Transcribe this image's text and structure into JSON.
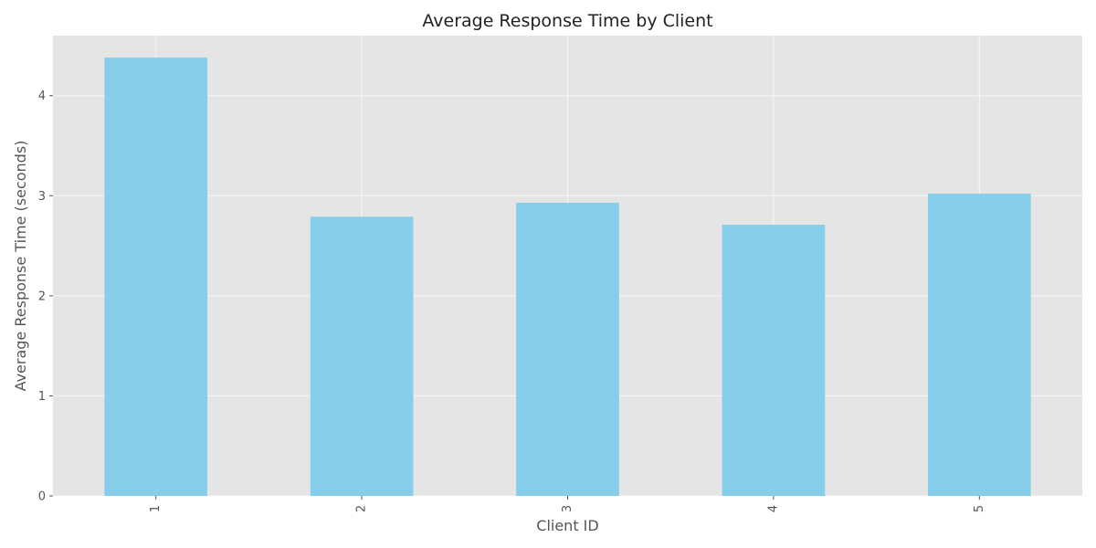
{
  "chart_data": {
    "type": "bar",
    "title": "Average Response Time by Client",
    "xlabel": "Client ID",
    "ylabel": "Average Response Time (seconds)",
    "categories": [
      "1",
      "2",
      "3",
      "4",
      "5"
    ],
    "values": [
      4.38,
      2.79,
      2.93,
      2.71,
      3.02
    ],
    "ylim": [
      0,
      4.6
    ],
    "yticks": [
      0,
      1,
      2,
      3,
      4
    ],
    "grid": true,
    "x_tick_rotation": "vertical",
    "colors": {
      "bar": "#87ceeb",
      "plot_background": "#e5e5e5",
      "grid": "#ffffff",
      "text": "#555555",
      "title": "#222222"
    }
  }
}
